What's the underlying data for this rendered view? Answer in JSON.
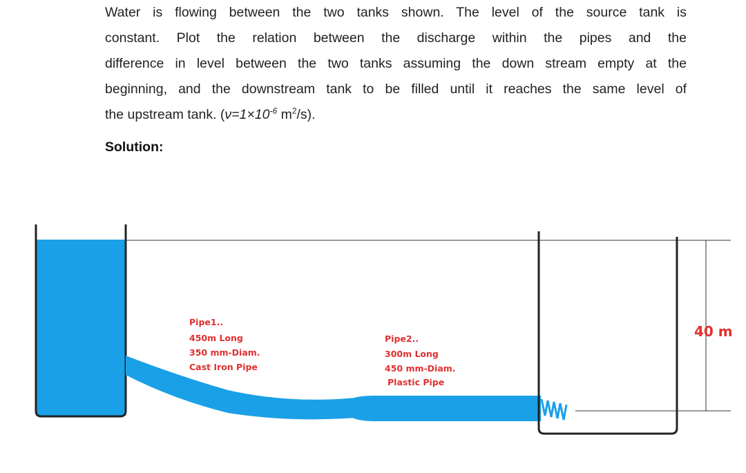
{
  "problem": {
    "lines": [
      "Water is flowing between the two tanks shown. The level of the source tank is",
      "constant. Plot the relation between the discharge within the pipes and the",
      "difference in level between the two tanks assuming the down stream empty at the",
      "beginning, and the downstream tank to be filled until it reaches the same level of",
      "the upstream tank. ("
    ],
    "viscosity": {
      "symbol": "ν=1×10",
      "exponent": "-6",
      "unit": " m",
      "unit_power": "2",
      "tail": "/s)."
    }
  },
  "solution_heading": "Solution:",
  "diagram": {
    "pipe1": [
      "Pipe1..",
      "450m Long",
      "350 mm-Diam.",
      "Cast Iron Pipe"
    ],
    "pipe2": [
      "Pipe2..",
      "300m Long",
      "450 mm-Diam.",
      "Plastic Pipe"
    ],
    "level_difference": "40 m"
  }
}
